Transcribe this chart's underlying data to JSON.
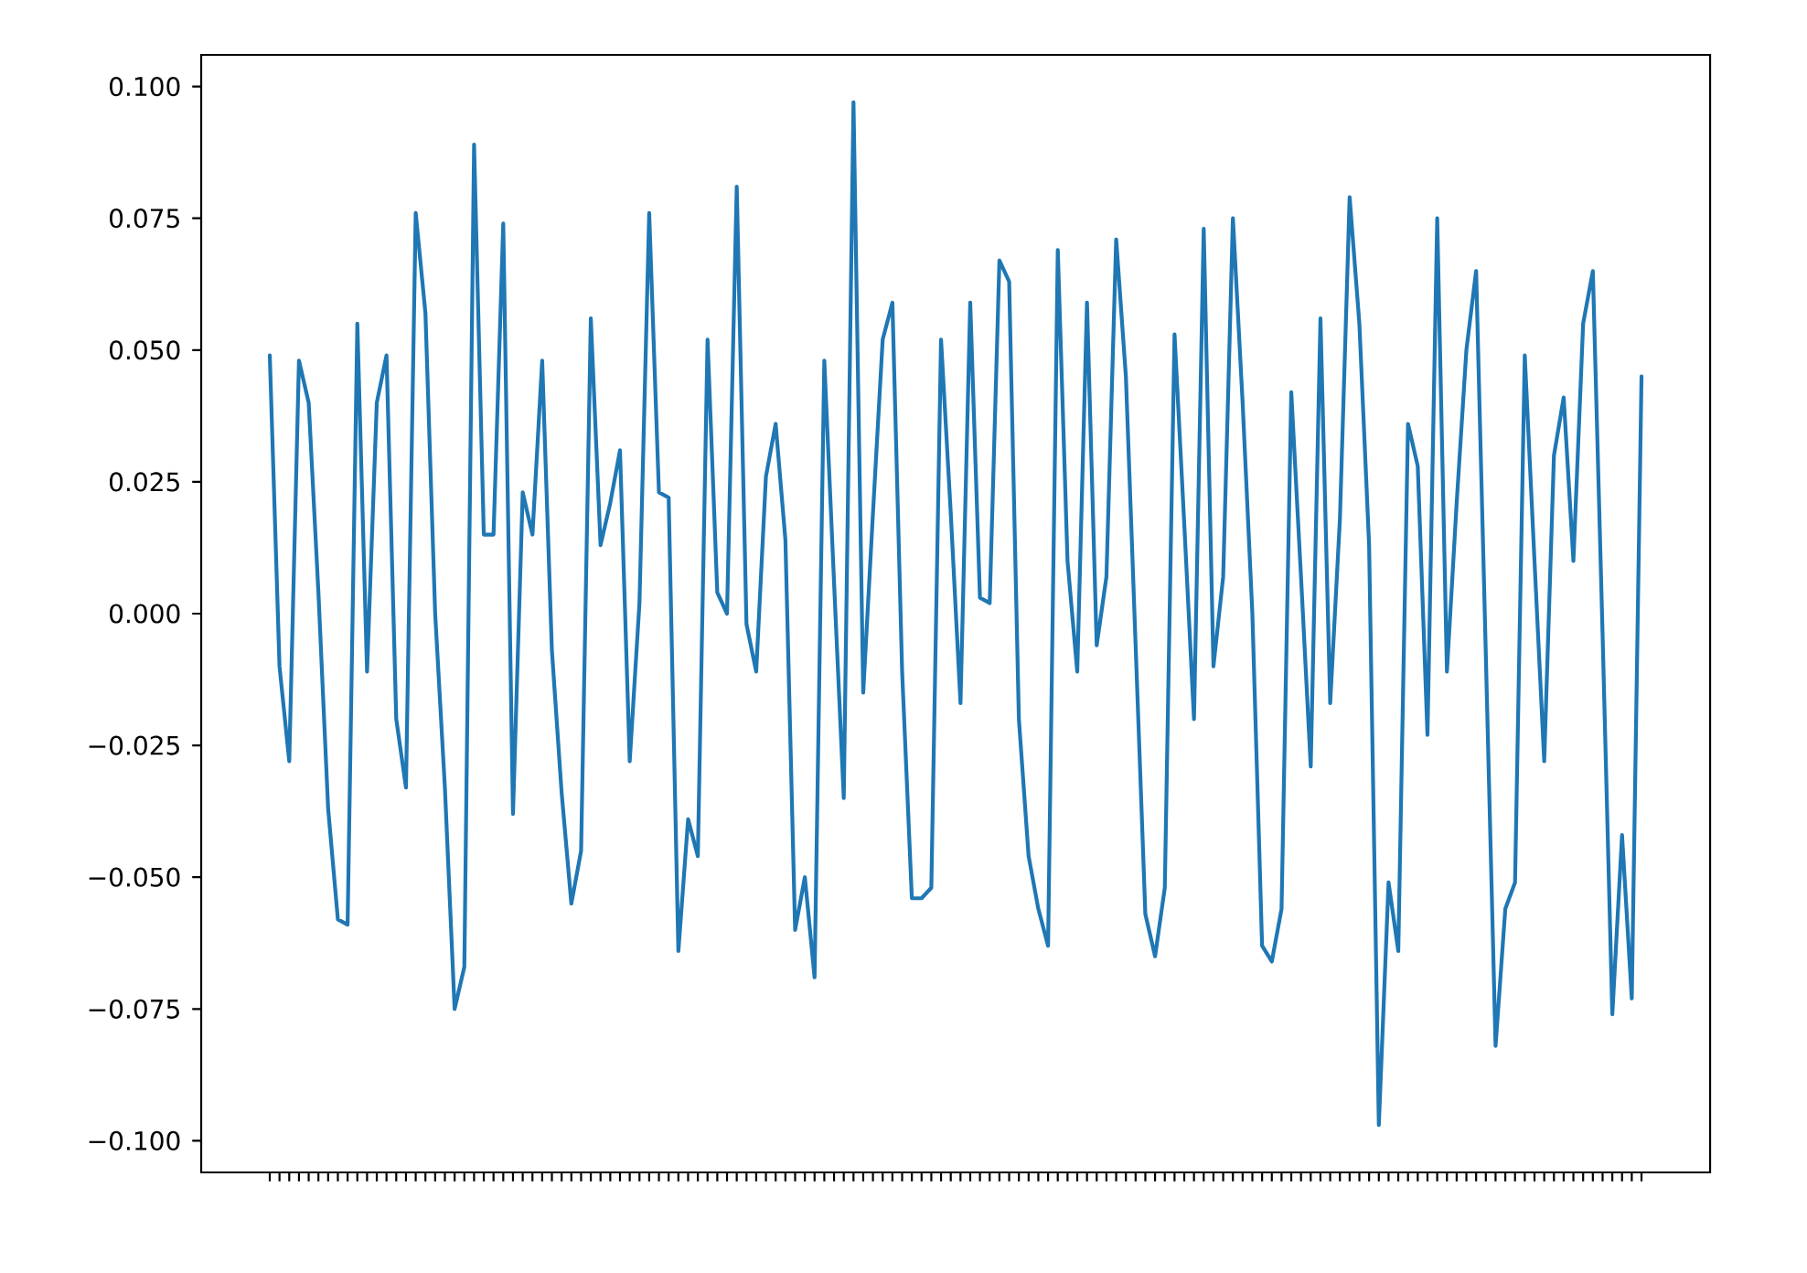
{
  "chart_data": {
    "type": "line",
    "color": "#1f77b4",
    "categories": [
      null,
      null,
      null,
      null,
      null,
      null,
      null,
      null,
      null,
      null,
      null,
      null,
      null,
      null,
      null,
      null,
      null,
      null,
      null,
      null,
      null,
      null,
      null,
      null,
      null,
      null,
      null,
      null,
      null,
      null,
      null,
      null,
      null,
      null,
      null,
      null,
      null,
      null,
      null,
      null,
      null,
      null,
      null,
      null,
      null,
      null,
      null,
      null,
      null,
      null,
      null,
      null,
      null,
      null,
      null,
      null,
      null,
      null,
      null,
      null,
      null,
      null,
      null,
      null,
      null,
      null,
      null,
      null,
      null,
      null,
      null,
      null,
      null,
      null,
      null,
      null,
      null,
      null,
      null,
      null,
      null,
      null,
      null,
      null,
      null,
      null,
      null,
      null,
      null,
      null,
      null,
      null,
      null,
      null,
      null,
      null,
      null,
      null,
      null,
      null,
      null,
      null,
      null,
      null,
      null,
      null,
      null,
      null,
      null,
      null,
      null,
      null,
      null,
      null,
      null,
      null,
      null,
      null,
      null,
      null,
      null,
      null,
      null,
      null,
      null,
      null,
      null,
      null,
      null,
      null,
      null,
      null,
      null,
      null,
      null,
      null,
      null,
      null,
      null,
      null,
      null,
      null
    ],
    "values": [
      0.049,
      -0.01,
      -0.028,
      0.048,
      0.04,
      0.004,
      -0.037,
      -0.058,
      -0.059,
      0.055,
      -0.011,
      0.04,
      0.049,
      -0.02,
      -0.033,
      0.076,
      0.057,
      0.0,
      -0.033,
      -0.075,
      -0.067,
      0.089,
      0.015,
      0.015,
      0.074,
      -0.038,
      0.023,
      0.015,
      0.048,
      -0.007,
      -0.034,
      -0.055,
      -0.045,
      0.056,
      0.013,
      0.021,
      0.031,
      -0.028,
      0.002,
      0.076,
      0.023,
      0.022,
      -0.064,
      -0.039,
      -0.046,
      0.052,
      0.004,
      0.0,
      0.081,
      -0.002,
      -0.011,
      0.026,
      0.036,
      0.014,
      -0.06,
      -0.05,
      -0.069,
      0.048,
      0.006,
      -0.035,
      0.097,
      -0.015,
      0.019,
      0.052,
      0.059,
      -0.011,
      -0.054,
      -0.054,
      -0.052,
      0.052,
      0.019,
      -0.017,
      0.059,
      0.003,
      0.002,
      0.067,
      0.063,
      -0.02,
      -0.046,
      -0.056,
      -0.063,
      0.069,
      0.01,
      -0.011,
      0.059,
      -0.006,
      0.007,
      0.071,
      0.045,
      -0.006,
      -0.057,
      -0.065,
      -0.052,
      0.053,
      0.017,
      -0.02,
      0.073,
      -0.01,
      0.007,
      0.075,
      0.04,
      0.0,
      -0.063,
      -0.066,
      -0.056,
      0.042,
      0.007,
      -0.029,
      0.056,
      -0.017,
      0.018,
      0.079,
      0.055,
      0.013,
      -0.097,
      -0.051,
      -0.064,
      0.036,
      0.028,
      -0.023,
      0.075,
      -0.011,
      0.021,
      0.05,
      0.065,
      -0.008,
      -0.082,
      -0.056,
      -0.051,
      0.049,
      0.01,
      -0.028,
      0.03,
      0.041,
      0.01,
      0.055,
      0.065,
      -0.004,
      -0.076,
      -0.042,
      -0.073,
      0.045
    ],
    "ylim": [
      -0.106,
      0.106
    ],
    "yticks": [
      {
        "value": -0.1,
        "label": "−0.100"
      },
      {
        "value": -0.075,
        "label": "−0.075"
      },
      {
        "value": -0.05,
        "label": "−0.050"
      },
      {
        "value": -0.025,
        "label": "−0.025"
      },
      {
        "value": 0.0,
        "label": "0.000"
      },
      {
        "value": 0.025,
        "label": "0.025"
      },
      {
        "value": 0.05,
        "label": "0.050"
      },
      {
        "value": 0.075,
        "label": "0.075"
      },
      {
        "value": 0.1,
        "label": "0.100"
      }
    ]
  }
}
